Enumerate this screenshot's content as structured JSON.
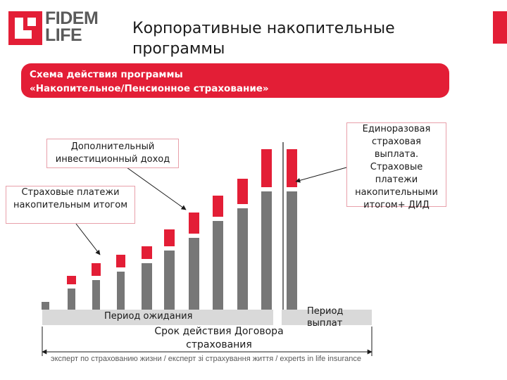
{
  "logo": {
    "line1": "FIDEM",
    "line2": "LIFE"
  },
  "title": "Корпоративные накопительные программы",
  "banner": {
    "line1": "Схема действия программы",
    "line2": "«Накопительное/Пенсионное страхование»"
  },
  "callouts": {
    "investment": [
      "Дополнительный",
      "инвестиционный доход"
    ],
    "payments": [
      "Страховые платежи",
      "накопительным итогом"
    ],
    "lump_sum": [
      "Единоразовая",
      "страховая",
      "выплата.",
      "Страховые",
      "платежи",
      "накопительными",
      "итогом+ ДИД"
    ]
  },
  "periods": {
    "waiting": "Период ожидания",
    "payout": [
      "Период",
      "выплат"
    ],
    "term": [
      "Срок действия Договора",
      "страхования"
    ]
  },
  "footer": "эксперт по страхованию жизни  /  експерт зі страхування життя  /  experts in life insurance",
  "colors": {
    "accent": "#e31e36",
    "gray_bar": "#777777",
    "period": "#d9d9d9"
  },
  "chart_data": {
    "type": "bar",
    "stacked": true,
    "series": [
      {
        "role": "payments",
        "values": [
          11,
          30,
          42,
          54,
          66,
          84,
          102,
          126,
          144,
          168,
          168
        ]
      },
      {
        "role": "investment",
        "values": [
          0,
          12,
          18,
          18,
          18,
          24,
          30,
          30,
          36,
          54,
          54
        ]
      }
    ],
    "colors": [
      "#777777",
      "#e31e36"
    ]
  }
}
